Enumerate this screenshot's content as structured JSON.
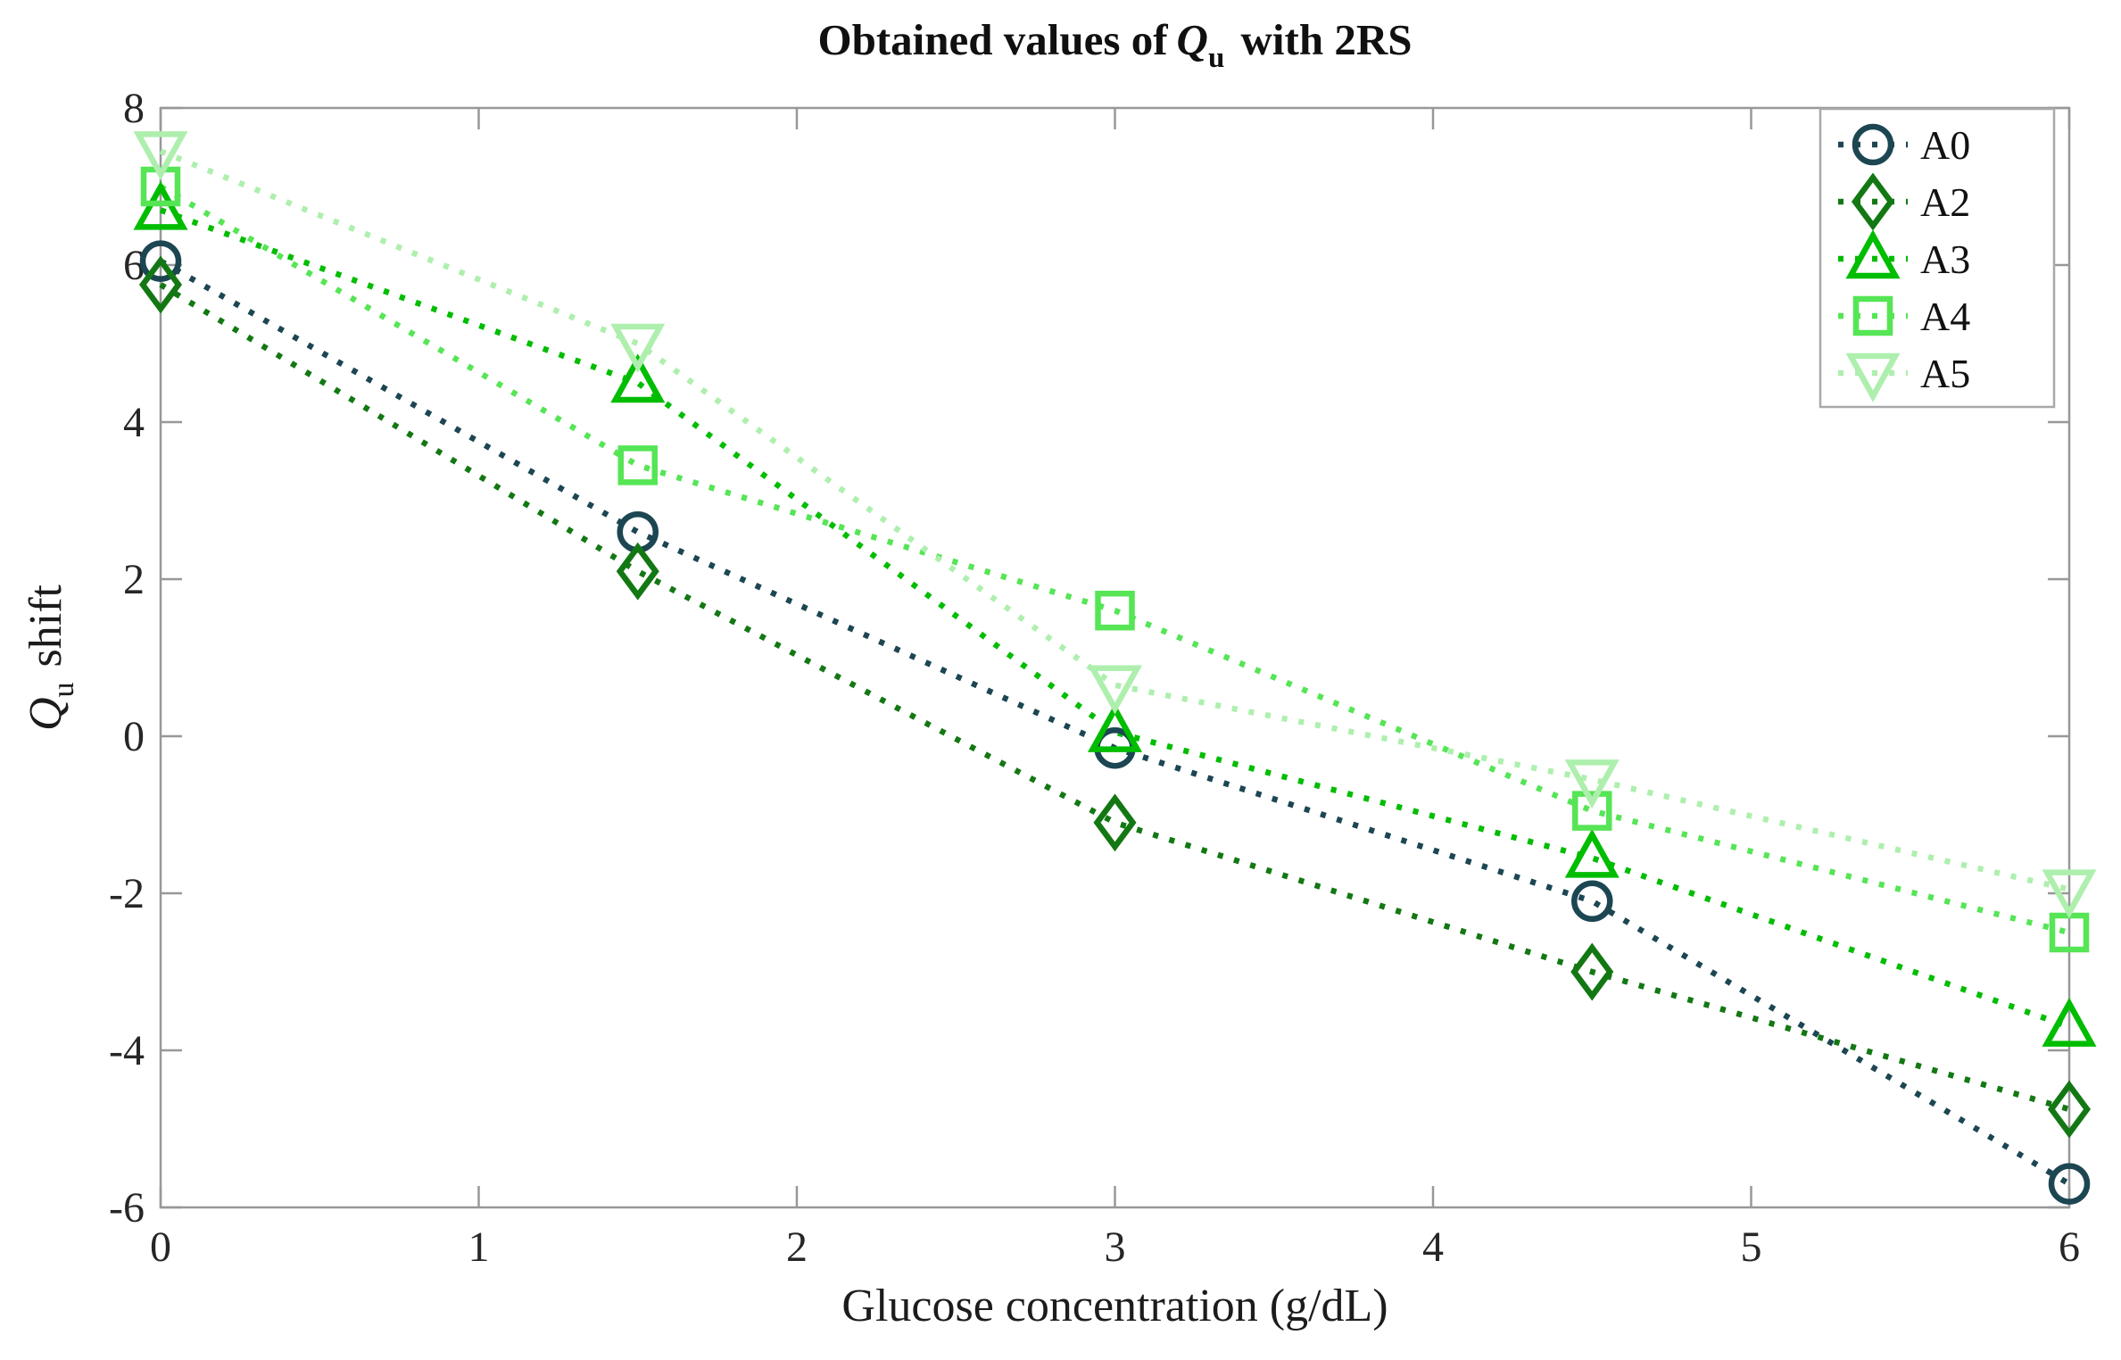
{
  "title": {
    "prefix": "Obtained values of",
    "math_var": "Q",
    "math_sub": "u",
    "suffix": " with 2RS"
  },
  "axes": {
    "x_label": "Glucose concentration (g/dL)",
    "y_label_var": "Q",
    "y_label_sub": "u",
    "y_label_rest": " shift"
  },
  "chart_data": {
    "type": "line",
    "title": "Obtained values of Q_u with 2RS",
    "xlabel": "Glucose concentration (g/dL)",
    "ylabel": "Q_u shift",
    "x": [
      0,
      1.5,
      3,
      4.5,
      6
    ],
    "xlim": [
      0,
      6
    ],
    "ylim": [
      -6,
      8
    ],
    "x_ticks": [
      0,
      1,
      2,
      3,
      4,
      5,
      6
    ],
    "y_ticks": [
      -6,
      -4,
      -2,
      0,
      2,
      4,
      6,
      8
    ],
    "grid": false,
    "line_style": "dotted",
    "legend_position": "top-right",
    "series": [
      {
        "name": "A0",
        "marker": "circle",
        "color": "#1c4652",
        "values": [
          6.05,
          2.6,
          -0.15,
          -2.1,
          -5.7
        ]
      },
      {
        "name": "A2",
        "marker": "diamond",
        "color": "#137813",
        "values": [
          5.75,
          2.1,
          -1.1,
          -3.0,
          -4.75
        ]
      },
      {
        "name": "A3",
        "marker": "triangle-up",
        "color": "#00bd00",
        "values": [
          6.7,
          4.5,
          0.05,
          -1.55,
          -3.7
        ]
      },
      {
        "name": "A4",
        "marker": "square",
        "color": "#55e555",
        "values": [
          7.0,
          3.45,
          1.6,
          -0.95,
          -2.5
        ]
      },
      {
        "name": "A5",
        "marker": "triangle-down",
        "color": "#aeefae",
        "values": [
          7.45,
          5.0,
          0.65,
          -0.55,
          -1.95
        ]
      }
    ],
    "colors": {
      "axis": "#989898",
      "tick_text": "#262626",
      "text": "#1c1c1c",
      "legend_border": "#a8a8a8",
      "background": "#ffffff"
    }
  }
}
